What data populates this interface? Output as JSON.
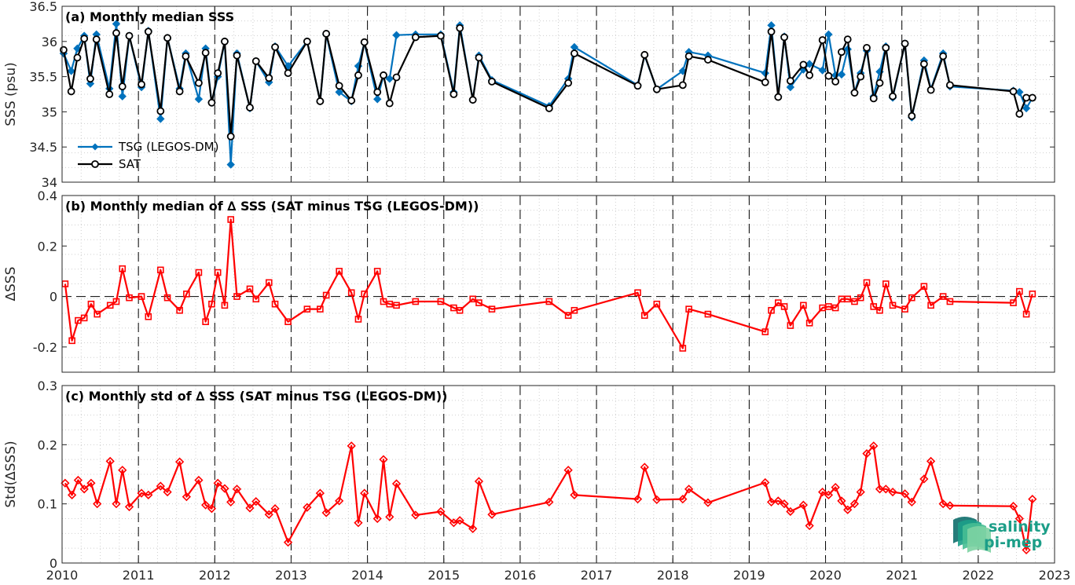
{
  "chart_data": [
    {
      "type": "line",
      "title": "(a) Monthly median SSS",
      "ylabel": "SSS (psu)",
      "xlim": [
        2010,
        2023
      ],
      "ylim": [
        34,
        36.5
      ],
      "yticks": [
        "34",
        "34.5",
        "35",
        "35.5",
        "36",
        "36.5"
      ],
      "grid": true,
      "legend_placement": "lower-left",
      "series": [
        {
          "name": "TSG (LEGOS-DM)",
          "color": "#0072BD",
          "marker": "diamond",
          "x": [
            2010.02,
            2010.12,
            2010.2,
            2010.29,
            2010.37,
            2010.45,
            2010.62,
            2010.71,
            2010.79,
            2010.88,
            2011.04,
            2011.13,
            2011.29,
            2011.38,
            2011.54,
            2011.62,
            2011.79,
            2011.88,
            2011.96,
            2012.04,
            2012.13,
            2012.21,
            2012.29,
            2012.46,
            2012.54,
            2012.71,
            2012.79,
            2012.96,
            2013.21,
            2013.38,
            2013.46,
            2013.63,
            2013.79,
            2013.88,
            2013.96,
            2014.13,
            2014.21,
            2014.29,
            2014.38,
            2014.63,
            2014.96,
            2015.13,
            2015.21,
            2015.38,
            2015.46,
            2015.63,
            2016.38,
            2016.63,
            2016.71,
            2017.54,
            2017.63,
            2017.79,
            2018.13,
            2018.21,
            2018.46,
            2019.21,
            2019.29,
            2019.38,
            2019.46,
            2019.54,
            2019.71,
            2019.79,
            2019.96,
            2020.04,
            2020.13,
            2020.21,
            2020.29,
            2020.38,
            2020.46,
            2020.54,
            2020.63,
            2020.71,
            2020.79,
            2020.88,
            2021.04,
            2021.13,
            2021.29,
            2021.38,
            2021.54,
            2021.63,
            2022.46,
            2022.54,
            2022.63,
            2022.71
          ],
          "y": [
            35.83,
            35.58,
            35.9,
            36.08,
            35.4,
            36.1,
            35.33,
            36.25,
            35.22,
            36.08,
            35.35,
            36.15,
            34.9,
            36.05,
            35.33,
            35.83,
            35.18,
            35.9,
            35.13,
            35.5,
            36.0,
            34.25,
            35.83,
            35.05,
            35.72,
            35.42,
            35.93,
            35.65,
            36.0,
            35.15,
            36.1,
            35.28,
            35.15,
            35.65,
            35.98,
            35.18,
            35.52,
            35.47,
            36.09,
            36.1,
            36.1,
            35.28,
            36.23,
            35.17,
            35.8,
            35.45,
            35.08,
            35.47,
            35.92,
            35.38,
            35.8,
            35.32,
            35.58,
            35.85,
            35.8,
            35.55,
            36.23,
            35.22,
            36.07,
            35.35,
            35.6,
            35.68,
            35.59,
            36.1,
            35.52,
            35.53,
            35.89,
            35.28,
            35.55,
            35.87,
            35.22,
            35.57,
            35.93,
            35.2,
            35.97,
            34.92,
            35.73,
            35.32,
            35.83,
            35.36,
            35.3,
            35.28,
            35.05,
            35.2
          ]
        },
        {
          "name": "SAT",
          "color": "#000000",
          "marker": "circle",
          "x": [
            2010.02,
            2010.12,
            2010.2,
            2010.29,
            2010.37,
            2010.45,
            2010.62,
            2010.71,
            2010.79,
            2010.88,
            2011.04,
            2011.13,
            2011.29,
            2011.38,
            2011.54,
            2011.62,
            2011.79,
            2011.88,
            2011.96,
            2012.04,
            2012.13,
            2012.21,
            2012.29,
            2012.46,
            2012.54,
            2012.71,
            2012.79,
            2012.96,
            2013.21,
            2013.38,
            2013.46,
            2013.63,
            2013.79,
            2013.88,
            2013.96,
            2014.13,
            2014.21,
            2014.29,
            2014.38,
            2014.63,
            2014.96,
            2015.13,
            2015.21,
            2015.38,
            2015.46,
            2015.63,
            2016.38,
            2016.63,
            2016.71,
            2017.54,
            2017.63,
            2017.79,
            2018.13,
            2018.21,
            2018.46,
            2019.21,
            2019.29,
            2019.38,
            2019.46,
            2019.54,
            2019.71,
            2019.79,
            2019.96,
            2020.04,
            2020.13,
            2020.21,
            2020.29,
            2020.38,
            2020.46,
            2020.54,
            2020.63,
            2020.71,
            2020.79,
            2020.88,
            2021.04,
            2021.13,
            2021.29,
            2021.38,
            2021.54,
            2021.63,
            2022.46,
            2022.54,
            2022.63,
            2022.71
          ],
          "y": [
            35.88,
            35.29,
            35.77,
            36.04,
            35.47,
            36.03,
            35.25,
            36.12,
            35.36,
            36.08,
            35.39,
            36.14,
            35.01,
            36.05,
            35.29,
            35.79,
            35.41,
            35.84,
            35.13,
            35.55,
            36.0,
            34.65,
            35.8,
            35.06,
            35.72,
            35.48,
            35.92,
            35.55,
            36.0,
            35.15,
            36.11,
            35.37,
            35.16,
            35.52,
            35.99,
            35.28,
            35.52,
            35.12,
            35.49,
            36.06,
            36.08,
            35.25,
            36.19,
            35.17,
            35.77,
            35.43,
            35.05,
            35.41,
            35.83,
            35.37,
            35.81,
            35.32,
            35.38,
            35.79,
            35.74,
            35.42,
            36.14,
            35.21,
            36.06,
            35.44,
            35.67,
            35.52,
            36.02,
            35.51,
            35.43,
            35.85,
            36.03,
            35.27,
            35.5,
            35.91,
            35.19,
            35.41,
            35.91,
            35.22,
            35.97,
            34.94,
            35.68,
            35.31,
            35.79,
            35.38,
            35.29,
            34.97,
            35.2,
            35.2
          ]
        }
      ]
    },
    {
      "type": "line",
      "title": "(b) Monthly median of ∆ SSS (SAT minus TSG (LEGOS-DM))",
      "ylabel": "∆SSS",
      "xlim": [
        2010,
        2023
      ],
      "ylim": [
        -0.3,
        0.4
      ],
      "yticks": [
        "-0.2",
        "0",
        "0.2",
        "0.4"
      ],
      "grid": true,
      "zero_line": "dashed",
      "series": [
        {
          "color": "#FF0000",
          "marker": "square",
          "x": [
            2010.04,
            2010.13,
            2010.21,
            2010.29,
            2010.38,
            2010.46,
            2010.63,
            2010.71,
            2010.79,
            2010.88,
            2011.04,
            2011.13,
            2011.29,
            2011.38,
            2011.54,
            2011.63,
            2011.79,
            2011.88,
            2011.96,
            2012.04,
            2012.13,
            2012.21,
            2012.29,
            2012.46,
            2012.54,
            2012.71,
            2012.79,
            2012.96,
            2013.21,
            2013.38,
            2013.46,
            2013.63,
            2013.79,
            2013.88,
            2013.96,
            2014.13,
            2014.21,
            2014.29,
            2014.38,
            2014.63,
            2014.96,
            2015.13,
            2015.21,
            2015.38,
            2015.46,
            2015.63,
            2016.38,
            2016.63,
            2016.71,
            2017.54,
            2017.63,
            2017.79,
            2018.13,
            2018.21,
            2018.46,
            2019.21,
            2019.29,
            2019.38,
            2019.46,
            2019.54,
            2019.71,
            2019.79,
            2019.96,
            2020.04,
            2020.13,
            2020.21,
            2020.29,
            2020.38,
            2020.46,
            2020.54,
            2020.63,
            2020.71,
            2020.79,
            2020.88,
            2021.04,
            2021.13,
            2021.29,
            2021.38,
            2021.54,
            2021.63,
            2022.46,
            2022.54,
            2022.63,
            2022.71
          ],
          "y": [
            0.05,
            -0.175,
            -0.095,
            -0.085,
            -0.03,
            -0.07,
            -0.035,
            -0.02,
            0.11,
            -0.005,
            0.0,
            -0.08,
            0.105,
            -0.005,
            -0.055,
            0.01,
            0.095,
            -0.1,
            -0.03,
            0.095,
            -0.035,
            0.305,
            0.0,
            0.03,
            -0.01,
            0.055,
            -0.03,
            -0.1,
            -0.05,
            -0.05,
            0.005,
            0.1,
            0.015,
            -0.09,
            0.01,
            0.1,
            -0.02,
            -0.03,
            -0.035,
            -0.02,
            -0.02,
            -0.045,
            -0.055,
            -0.01,
            -0.025,
            -0.05,
            -0.02,
            -0.075,
            -0.055,
            0.015,
            -0.075,
            -0.03,
            -0.205,
            -0.05,
            -0.07,
            -0.14,
            -0.055,
            -0.025,
            -0.04,
            -0.115,
            -0.035,
            -0.105,
            -0.045,
            -0.04,
            -0.045,
            -0.01,
            -0.01,
            -0.02,
            -0.005,
            0.055,
            -0.04,
            -0.055,
            0.05,
            -0.035,
            -0.05,
            -0.005,
            0.04,
            -0.035,
            0.0,
            -0.02,
            -0.025,
            0.02,
            -0.07,
            0.01
          ]
        }
      ]
    },
    {
      "type": "line",
      "title": "(c) Monthly std of ∆ SSS (SAT minus TSG (LEGOS-DM))",
      "ylabel": "Std(∆SSS)",
      "xlim": [
        2010,
        2023
      ],
      "ylim": [
        0,
        0.3
      ],
      "yticks": [
        "0",
        "0.1",
        "0.2",
        "0.3"
      ],
      "xticks": [
        "2010",
        "2011",
        "2012",
        "2013",
        "2014",
        "2015",
        "2016",
        "2017",
        "2018",
        "2019",
        "2020",
        "2021",
        "2022",
        "2023"
      ],
      "grid": true,
      "series": [
        {
          "color": "#FF0000",
          "marker": "diamond",
          "x": [
            2010.04,
            2010.13,
            2010.21,
            2010.29,
            2010.38,
            2010.46,
            2010.63,
            2010.71,
            2010.79,
            2010.88,
            2011.04,
            2011.13,
            2011.29,
            2011.38,
            2011.54,
            2011.63,
            2011.79,
            2011.88,
            2011.96,
            2012.04,
            2012.13,
            2012.21,
            2012.29,
            2012.46,
            2012.54,
            2012.71,
            2012.79,
            2012.96,
            2013.21,
            2013.38,
            2013.46,
            2013.63,
            2013.79,
            2013.88,
            2013.96,
            2014.13,
            2014.21,
            2014.29,
            2014.38,
            2014.63,
            2014.96,
            2015.13,
            2015.21,
            2015.38,
            2015.46,
            2015.63,
            2016.38,
            2016.63,
            2016.71,
            2017.54,
            2017.63,
            2017.79,
            2018.13,
            2018.21,
            2018.46,
            2019.21,
            2019.29,
            2019.38,
            2019.46,
            2019.54,
            2019.71,
            2019.79,
            2019.96,
            2020.04,
            2020.13,
            2020.21,
            2020.29,
            2020.38,
            2020.46,
            2020.54,
            2020.63,
            2020.71,
            2020.79,
            2020.88,
            2021.04,
            2021.13,
            2021.29,
            2021.38,
            2021.54,
            2021.63,
            2022.46,
            2022.54,
            2022.63,
            2022.71
          ],
          "y": [
            0.135,
            0.115,
            0.14,
            0.125,
            0.135,
            0.1,
            0.172,
            0.1,
            0.157,
            0.095,
            0.118,
            0.115,
            0.13,
            0.12,
            0.171,
            0.112,
            0.14,
            0.098,
            0.092,
            0.135,
            0.126,
            0.103,
            0.125,
            0.093,
            0.104,
            0.082,
            0.092,
            0.035,
            0.094,
            0.118,
            0.085,
            0.105,
            0.198,
            0.068,
            0.118,
            0.075,
            0.175,
            0.078,
            0.134,
            0.081,
            0.087,
            0.068,
            0.072,
            0.058,
            0.138,
            0.082,
            0.103,
            0.157,
            0.115,
            0.108,
            0.162,
            0.107,
            0.108,
            0.125,
            0.102,
            0.136,
            0.103,
            0.105,
            0.1,
            0.087,
            0.098,
            0.063,
            0.12,
            0.115,
            0.128,
            0.105,
            0.09,
            0.1,
            0.12,
            0.185,
            0.198,
            0.125,
            0.125,
            0.12,
            0.117,
            0.103,
            0.142,
            0.172,
            0.1,
            0.097,
            0.096,
            0.075,
            0.022,
            0.108
          ]
        }
      ]
    }
  ],
  "logo": {
    "line1": "salinity",
    "line2": "pi-mep",
    "colors": [
      "#1C9E88",
      "#47BE94",
      "#7DD3A3",
      "#0E6E6B"
    ]
  }
}
